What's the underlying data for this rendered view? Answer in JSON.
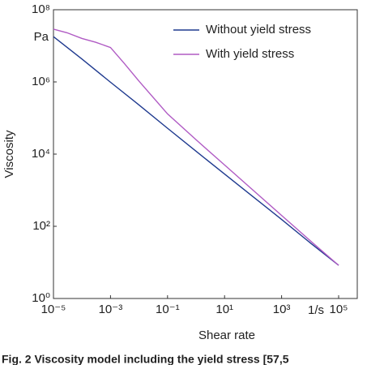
{
  "chart_data": {
    "type": "line",
    "xlabel": "Shear rate",
    "ylabel": "Viscosity",
    "x_unit": "1/s",
    "y_unit": "Pa",
    "caption": "Fig. 2   Viscosity model including the yield stress [57,5",
    "xscale": "log",
    "yscale": "log",
    "xlim": [
      1e-05,
      450000
    ],
    "ylim": [
      1,
      100000000
    ],
    "xticks": [
      {
        "value": 1e-05,
        "label": "10⁻⁵"
      },
      {
        "value": 0.001,
        "label": "10⁻³"
      },
      {
        "value": 0.1,
        "label": "10⁻¹"
      },
      {
        "value": 10,
        "label": "10¹"
      },
      {
        "value": 1000,
        "label": "10³"
      },
      {
        "value": 100000,
        "label": "10⁵"
      }
    ],
    "yticks": [
      {
        "value": 1,
        "label": "10⁰"
      },
      {
        "value": 100,
        "label": "10²"
      },
      {
        "value": 10000,
        "label": "10⁴"
      },
      {
        "value": 1000000,
        "label": "10⁶"
      },
      {
        "value": 100000000,
        "label": "10⁸"
      }
    ],
    "legend": "upper right",
    "series": [
      {
        "name": "Without yield stress",
        "color": "#1f3a8f",
        "x": [
          1e-05,
          0.0001,
          0.001,
          0.01,
          0.1,
          1,
          10,
          100,
          1000,
          10000,
          100000
        ],
        "values": [
          18000000,
          4300000,
          980000,
          230000,
          52000,
          12000,
          2800,
          660,
          155,
          35,
          8.3
        ]
      },
      {
        "name": "With yield stress",
        "color": "#b05bc4",
        "x": [
          1e-05,
          3e-05,
          0.0001,
          0.0003,
          0.001,
          0.003,
          0.01,
          0.1,
          1,
          10,
          100,
          1000,
          10000,
          100000
        ],
        "values": [
          29000000,
          23000000,
          16000000,
          12600000,
          9000000,
          3300000,
          1050000,
          130000,
          25000,
          5000,
          1000,
          200,
          40,
          8.3
        ]
      }
    ]
  }
}
